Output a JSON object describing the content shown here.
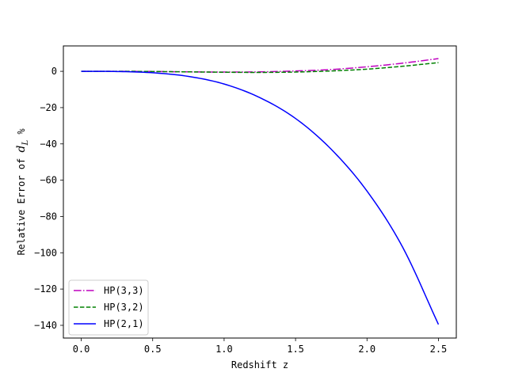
{
  "chart_data": {
    "type": "line",
    "title": "",
    "xlabel": "Redshift z",
    "ylabel_prefix": "Relative Error of ",
    "ylabel_math_base": "d",
    "ylabel_math_sub": "L",
    "ylabel_suffix": " %",
    "xlim": [
      -0.125,
      2.625
    ],
    "ylim": [
      -147,
      14
    ],
    "xticks": [
      0.0,
      0.5,
      1.0,
      1.5,
      2.0,
      2.5
    ],
    "xtick_labels": [
      "0.0",
      "0.5",
      "1.0",
      "1.5",
      "2.0",
      "2.5"
    ],
    "yticks": [
      0,
      -20,
      -40,
      -60,
      -80,
      -100,
      -120,
      -140
    ],
    "ytick_labels": [
      "0",
      "−20",
      "−40",
      "−60",
      "−80",
      "−100",
      "−120",
      "−140"
    ],
    "grid": false,
    "legend_position": "lower-left",
    "x": [
      0.0,
      0.25,
      0.5,
      0.75,
      1.0,
      1.25,
      1.5,
      1.75,
      2.0,
      2.25,
      2.5
    ],
    "series": [
      {
        "name": "HP(3,3)",
        "color": "#bf00bf",
        "dash": "dashdot",
        "values": [
          0.0,
          0.0,
          -0.1,
          -0.3,
          -0.4,
          -0.3,
          0.2,
          1.0,
          2.5,
          4.5,
          7.0
        ]
      },
      {
        "name": "HP(3,2)",
        "color": "#008000",
        "dash": "dashed",
        "values": [
          0.0,
          0.0,
          -0.1,
          -0.3,
          -0.5,
          -0.6,
          -0.4,
          0.2,
          1.2,
          2.8,
          4.8
        ]
      },
      {
        "name": "HP(2,1)",
        "color": "#0000ff",
        "dash": "solid",
        "values": [
          0.0,
          -0.1,
          -0.8,
          -2.8,
          -7.0,
          -14.5,
          -26.0,
          -43.0,
          -66.0,
          -97.0,
          -139.5
        ]
      }
    ]
  }
}
